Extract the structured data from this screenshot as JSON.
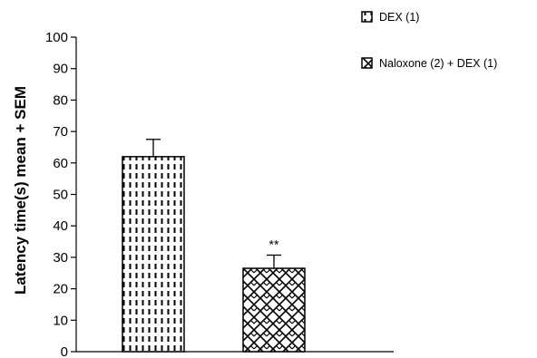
{
  "chart_data": {
    "type": "bar",
    "categories": [
      "DEX (1)",
      "Naloxone (2) + DEX (1)"
    ],
    "values": [
      62,
      26.5
    ],
    "errors": [
      5.5,
      4.2
    ],
    "annotations": [
      "",
      "**"
    ],
    "ylabel": "Latency time(s) mean + SEM",
    "xlabel": "",
    "ylim": [
      0,
      100
    ],
    "yticks": [
      0,
      10,
      20,
      30,
      40,
      50,
      60,
      70,
      80,
      90,
      100
    ],
    "legend": {
      "placement": "top-right",
      "entries": [
        "DEX (1)",
        "Naloxone (2) + DEX (1)"
      ]
    },
    "patterns": [
      "dashed-vertical",
      "wave-crosshatch"
    ],
    "colors": {
      "bar_fill": "#ffffff",
      "ink": "#000000"
    },
    "grid": false
  }
}
